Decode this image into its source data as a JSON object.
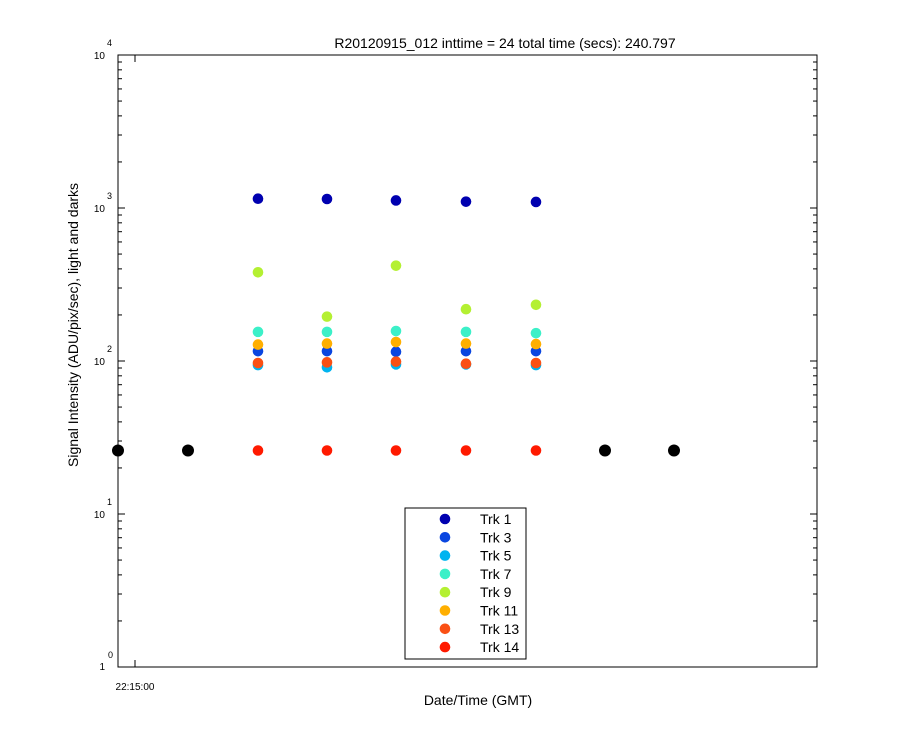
{
  "chart_data": {
    "type": "scatter",
    "title": "R20120915_012 inttime = 24 total time (secs): 240.797",
    "xlabel": "Date/Time (GMT)",
    "ylabel": "Signal Intensity (ADU/pix/sec), light and darks",
    "yscale": "log",
    "ylim": [
      1,
      10000
    ],
    "y_ticks": [
      {
        "base": "10",
        "exp": "4",
        "value": 10000
      },
      {
        "base": "10",
        "exp": "3",
        "value": 1000
      },
      {
        "base": "10",
        "exp": "2",
        "value": 100
      },
      {
        "base": "10",
        "exp": "1",
        "value": 10
      }
    ],
    "x_ticks": [
      "22:15:00"
    ],
    "legend_position": "bottom-center",
    "series": [
      {
        "name": "Trk 1",
        "color": "#0000b0",
        "values": [
          1150,
          1145,
          1120,
          1100,
          1095
        ]
      },
      {
        "name": "Trk 3",
        "color": "#0a46e0",
        "values": [
          116,
          116,
          115,
          116,
          116
        ]
      },
      {
        "name": "Trk 5",
        "color": "#00b4f0",
        "values": [
          94,
          91,
          95,
          95,
          94
        ]
      },
      {
        "name": "Trk 7",
        "color": "#3cf0c8",
        "values": [
          155,
          155,
          157,
          155,
          152
        ]
      },
      {
        "name": "Trk 9",
        "color": "#b4f032",
        "values": [
          380,
          195,
          420,
          218,
          233
        ]
      },
      {
        "name": "Trk 11",
        "color": "#ffaf00",
        "values": [
          128,
          130,
          133,
          130,
          129
        ]
      },
      {
        "name": "Trk 13",
        "color": "#fa5014",
        "values": [
          97,
          98,
          99,
          96,
          97
        ]
      },
      {
        "name": "Trk 14",
        "color": "#ff1a00",
        "values": [
          26,
          26,
          26,
          26,
          26
        ]
      }
    ],
    "dark_series": {
      "color": "#000000",
      "values": [
        26,
        26,
        26,
        26
      ]
    }
  }
}
